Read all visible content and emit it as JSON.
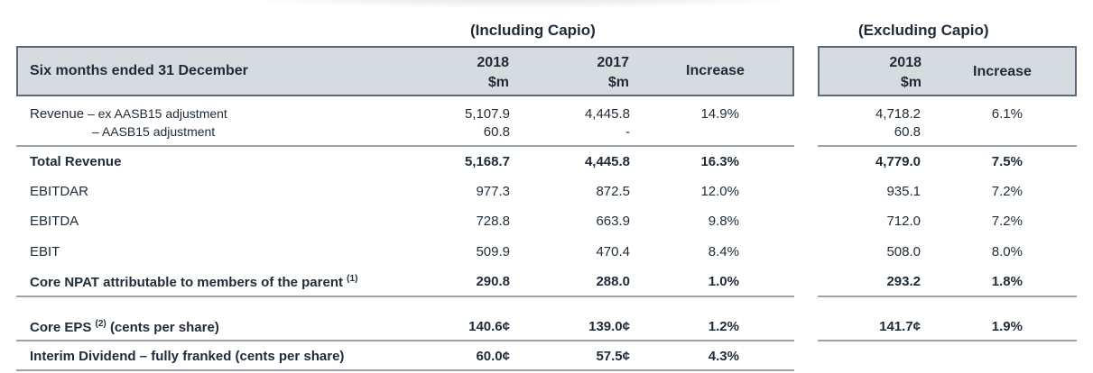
{
  "groups": {
    "including": "(Including Capio)",
    "excluding": "(Excluding Capio)"
  },
  "header": {
    "period_label": "Six months ended 31 December",
    "col_2018_year": "2018",
    "col_2018_unit": "$m",
    "col_2017_year": "2017",
    "col_2017_unit": "$m",
    "col_increase": "Increase",
    "ex_2018_year": "2018",
    "ex_2018_unit": "$m",
    "ex_increase": "Increase"
  },
  "revenue": {
    "label_main": "Revenue",
    "label_sub1": "– ex AASB15 adjustment",
    "label_sub2": "– AASB15 adjustment",
    "v2018_1": "5,107.9",
    "v2018_2": "60.8",
    "v2017_1": "4,445.8",
    "v2017_2": "-",
    "inc": "14.9%",
    "ex2018_1": "4,718.2",
    "ex2018_2": "60.8",
    "exinc": "6.1%"
  },
  "rows": [
    {
      "label": "Total Revenue",
      "v2018": "5,168.7",
      "v2017": "4,445.8",
      "inc": "16.3%",
      "ex2018": "4,779.0",
      "exinc": "7.5%"
    },
    {
      "label": "EBITDAR",
      "v2018": "977.3",
      "v2017": "872.5",
      "inc": "12.0%",
      "ex2018": "935.1",
      "exinc": "7.2%"
    },
    {
      "label": "EBITDA",
      "v2018": "728.8",
      "v2017": "663.9",
      "inc": "9.8%",
      "ex2018": "712.0",
      "exinc": "7.2%"
    },
    {
      "label": "EBIT",
      "v2018": "509.9",
      "v2017": "470.4",
      "inc": "8.4%",
      "ex2018": "508.0",
      "exinc": "8.0%"
    },
    {
      "label": "Core NPAT attributable to members of the parent",
      "sup": "(1)",
      "v2018": "290.8",
      "v2017": "288.0",
      "inc": "1.0%",
      "ex2018": "293.2",
      "exinc": "1.8%"
    },
    {
      "label_pre": "Core EPS",
      "sup": "(2)",
      "label_post": "(cents per share)",
      "v2018": "140.6¢",
      "v2017": "139.0¢",
      "inc": "1.2%",
      "ex2018": "141.7¢",
      "exinc": "1.9%"
    },
    {
      "label": "Interim Dividend – fully franked (cents per share)",
      "v2018": "60.0¢",
      "v2017": "57.5¢",
      "inc": "4.3%"
    }
  ]
}
